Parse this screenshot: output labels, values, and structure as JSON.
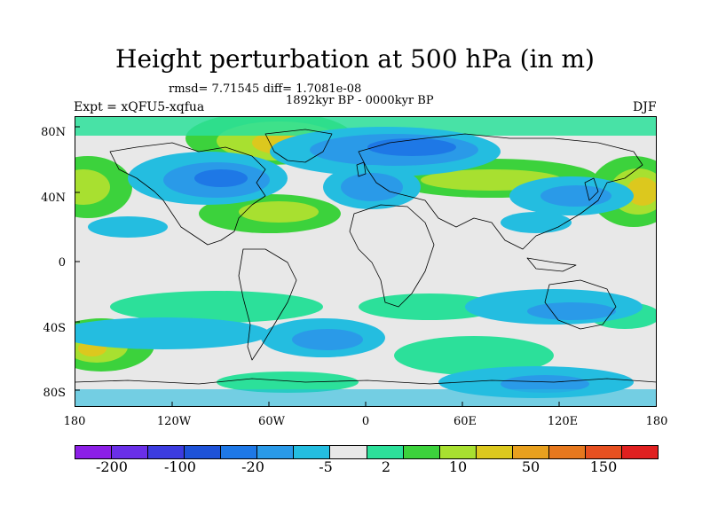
{
  "title": "Height perturbation at 500 hPa (in m)",
  "stats": "rmsd= 7.71545 diff= 1.7081e-08",
  "period": "1892kyr BP - 0000kyr BP",
  "expt": "Expt = xQFU5-xqfua",
  "season": "DJF",
  "yaxis": {
    "lat80n": "80N",
    "lat40n": "40N",
    "lat0": "0",
    "lat40s": "40S",
    "lat80s": "80S"
  },
  "xaxis": {
    "w180": "180",
    "w120": "120W",
    "w60": "60W",
    "c0": "0",
    "e60": "60E",
    "e120": "120E",
    "e180": "180"
  },
  "colorbar": {
    "colors": [
      "#8c1fe6",
      "#6a2fe8",
      "#3c3ce0",
      "#1e52d8",
      "#1e78e6",
      "#2a9ae8",
      "#24bde0",
      "#e8e8e8",
      "#2ce09a",
      "#3cd23c",
      "#a8e030",
      "#dcc81e",
      "#e8a01e",
      "#e6781e",
      "#e65020",
      "#e02020"
    ],
    "labels": {
      "l200n": "-200",
      "l100n": "-100",
      "l20n": "-20",
      "l5n": "-5",
      "l2": "2",
      "l10": "10",
      "l50": "50",
      "l150": "150"
    }
  }
}
